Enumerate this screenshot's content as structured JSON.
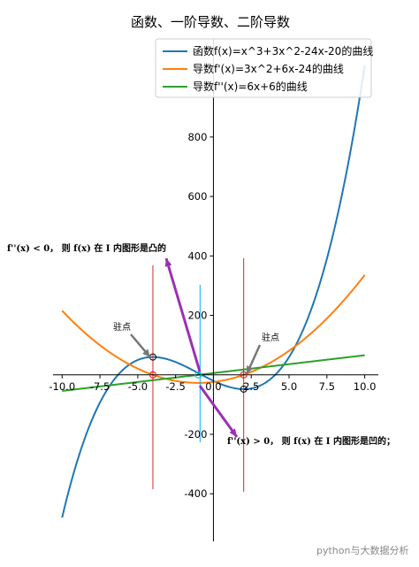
{
  "chart_data": {
    "type": "line",
    "title": "函数、一阶导数、二阶导数",
    "xlim": [
      -10.6,
      10.9
    ],
    "ylim": [
      -560,
      1130
    ],
    "xticks": [
      -10.0,
      -7.5,
      -5.0,
      -2.5,
      0.0,
      2.5,
      5.0,
      7.5,
      10.0
    ],
    "xtick_labels": [
      "-10.0",
      "-7.5",
      "-5.0",
      "-2.5",
      "0.0",
      "2.5",
      "5.0",
      "7.5",
      "10.0"
    ],
    "yticks": [
      -400,
      -200,
      200,
      400,
      600,
      800
    ],
    "ytick_labels": [
      "-400",
      "-200",
      "200",
      "400",
      "600",
      "800"
    ],
    "grid": false,
    "legend_position": "top-right",
    "series": [
      {
        "name": "函数f(x)=x^3+3x^2-24x-20的曲线",
        "color": "#1f77b4",
        "expr": "x^3+3x^2-24x-20",
        "coeffs": [
          1,
          3,
          -24,
          -20
        ],
        "domain": [
          -10,
          10
        ]
      },
      {
        "name": "导数f'(x)=3x^2+6x-24的曲线",
        "color": "#ff7f0e",
        "expr": "3x^2+6x-24",
        "coeffs": [
          0,
          3,
          6,
          -24
        ],
        "domain": [
          -10,
          10
        ]
      },
      {
        "name": "导数f''(x)=6x+6的曲线",
        "color": "#2ca02c",
        "expr": "6x+6",
        "coeffs": [
          0,
          0,
          6,
          6
        ],
        "domain": [
          -10,
          10
        ]
      }
    ],
    "stationary_points": [
      {
        "x": -4,
        "y": 60
      },
      {
        "x": 2,
        "y": -48
      }
    ],
    "zero_crossings": [
      -4,
      -1,
      2
    ],
    "annotations": {
      "concave_down": "f''(x) < 0， 则 f(x) 在 I 内图形是凸的",
      "concave_up": "f''(x) > 0， 则 f(x) 在 I 内图形是凹的；",
      "stationary_left": "驻点",
      "stationary_right": "驻点"
    }
  },
  "watermark": "python与大数据分析"
}
